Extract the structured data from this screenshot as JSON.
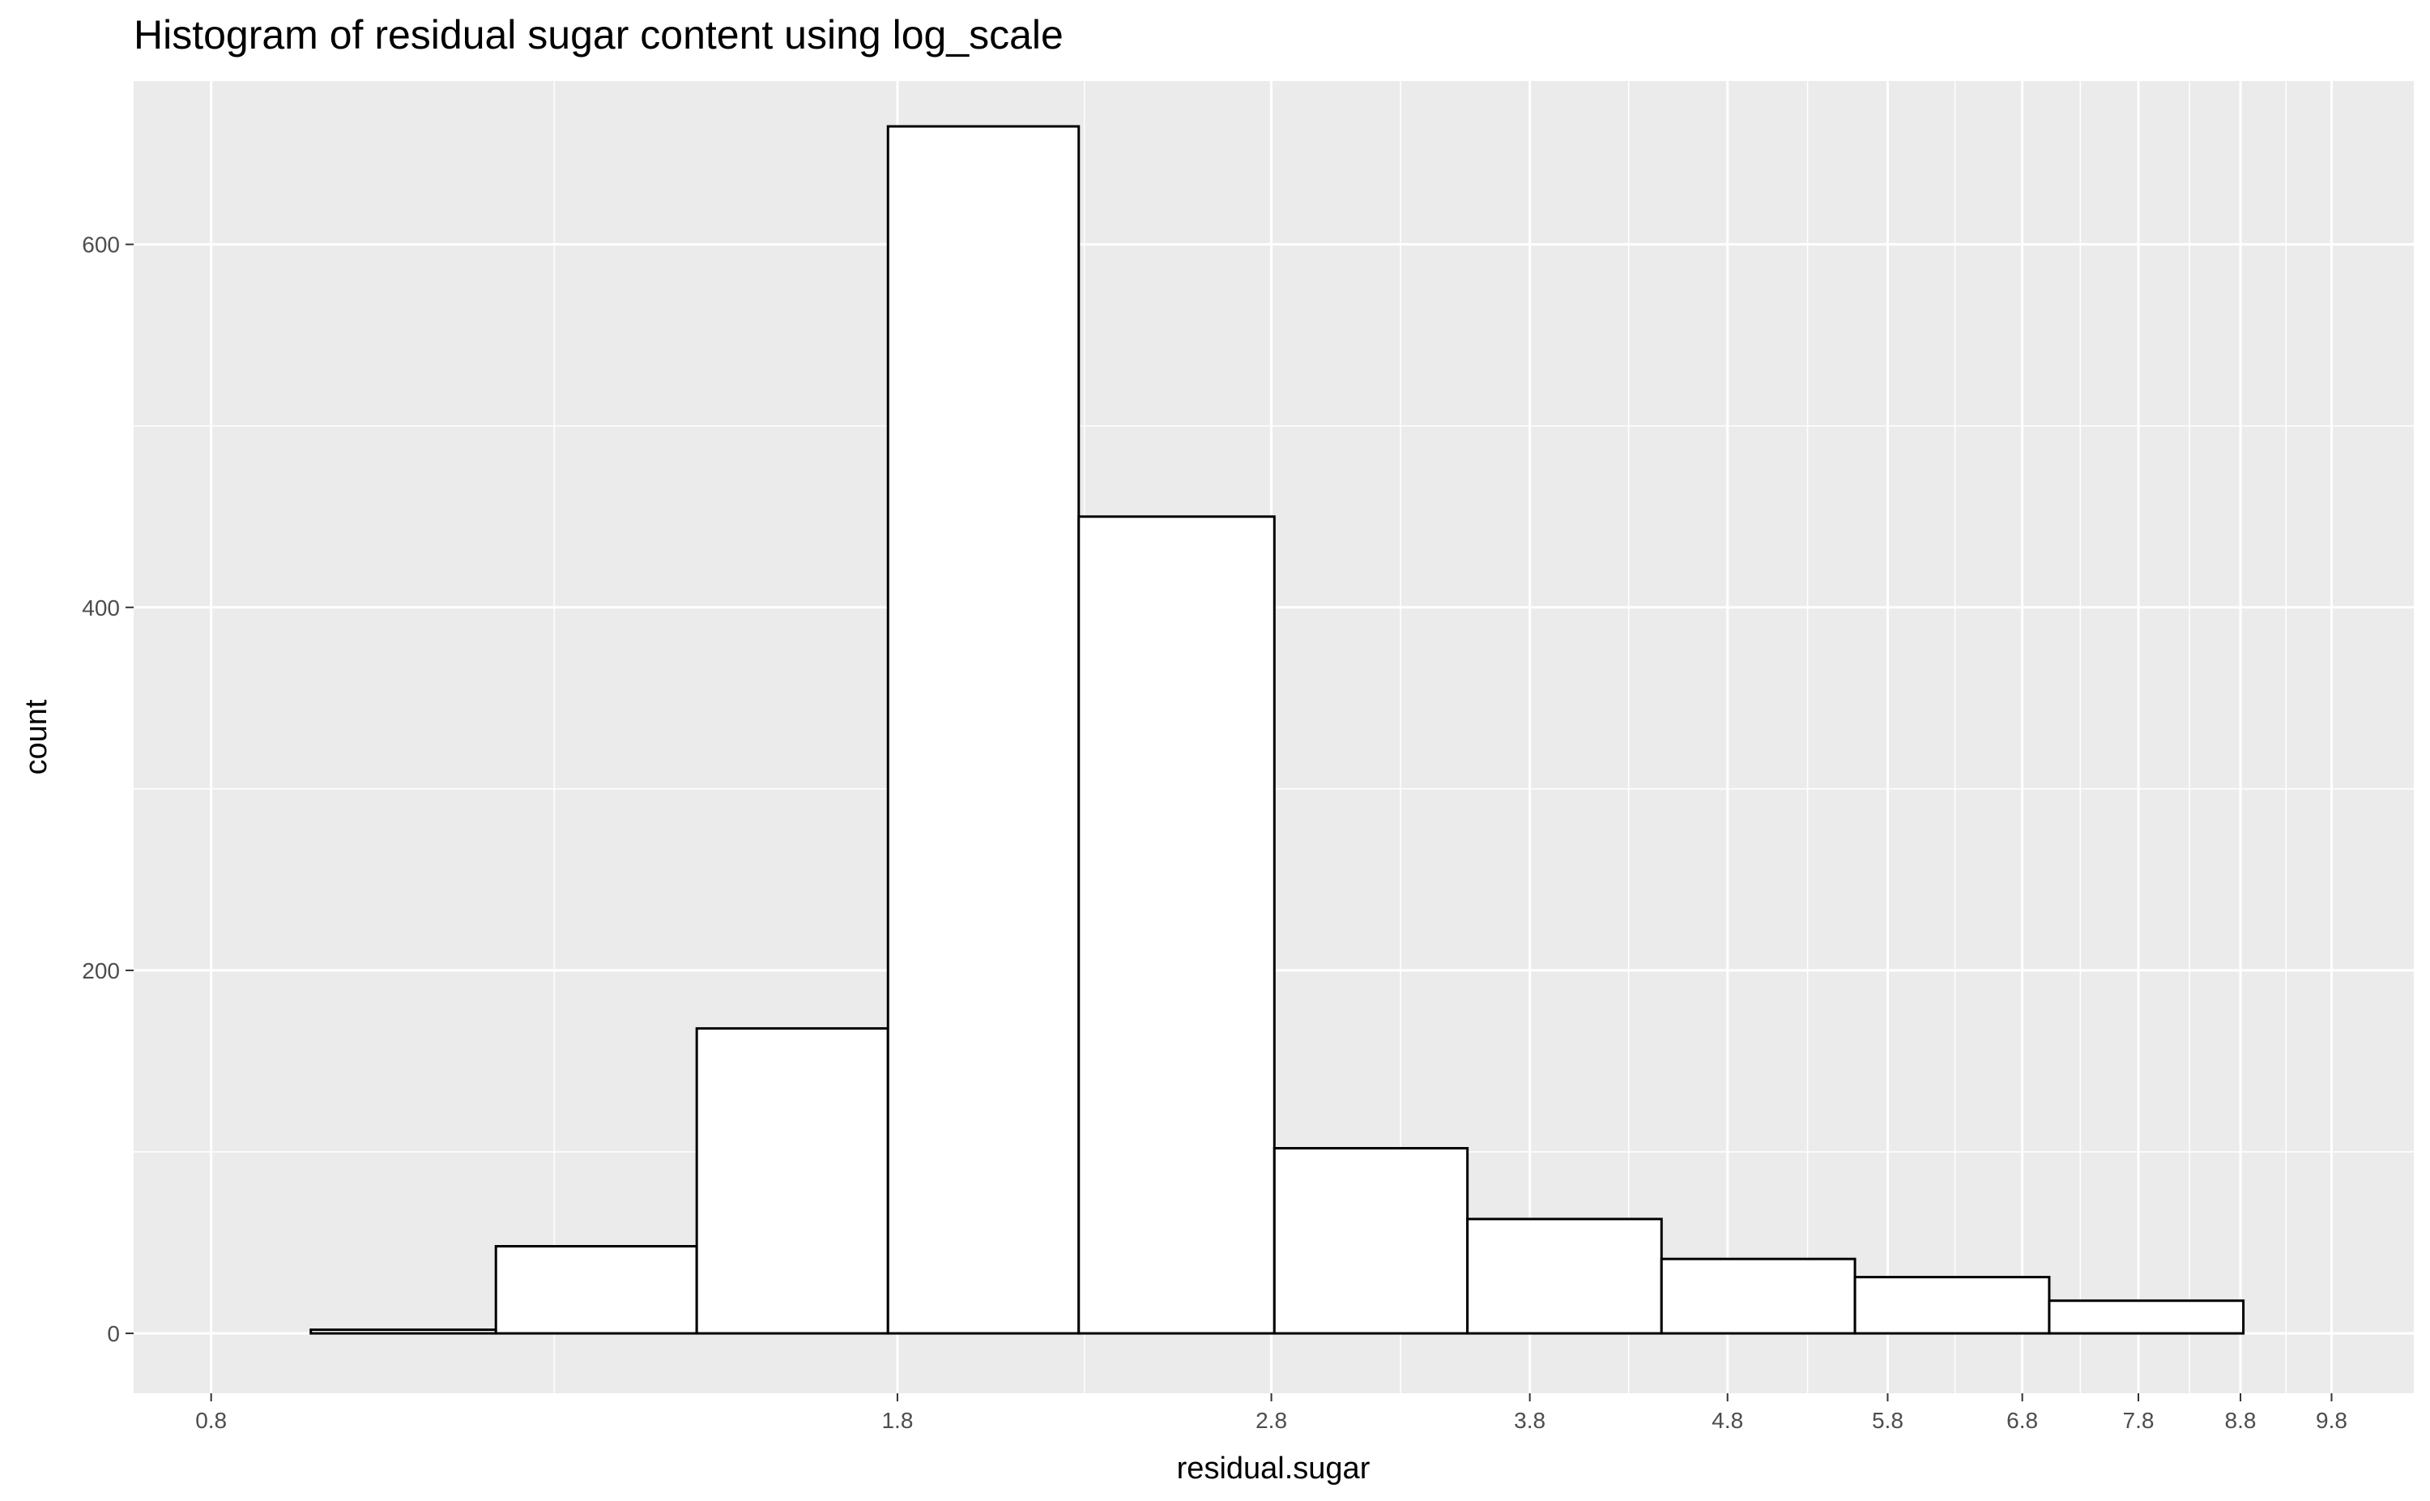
{
  "chart_data": {
    "type": "bar",
    "title": "Histogram of residual sugar content using log_scale",
    "xlabel": "residual.sugar",
    "ylabel": "count",
    "x_scale": "log10",
    "x_ticks": [
      "0.8",
      "1.8",
      "2.8",
      "3.8",
      "4.8",
      "5.8",
      "6.8",
      "7.8",
      "8.8",
      "9.8"
    ],
    "y_ticks": [
      "0",
      "200",
      "400",
      "600"
    ],
    "xlim": [
      0.73,
      10.8
    ],
    "ylim": [
      -33,
      690
    ],
    "grid": true,
    "bar_fill": "#ffffff",
    "bar_stroke": "#000000",
    "panel_background": "#ebebeb",
    "grid_color": "#ffffff",
    "bins": [
      {
        "x0": 0.9,
        "x1": 1.12,
        "count": 2
      },
      {
        "x0": 1.12,
        "x1": 1.42,
        "count": 48
      },
      {
        "x0": 1.42,
        "x1": 1.78,
        "count": 168
      },
      {
        "x0": 1.78,
        "x1": 2.23,
        "count": 665
      },
      {
        "x0": 2.23,
        "x1": 2.81,
        "count": 450
      },
      {
        "x0": 2.81,
        "x1": 3.53,
        "count": 102
      },
      {
        "x0": 3.53,
        "x1": 4.44,
        "count": 63
      },
      {
        "x0": 4.44,
        "x1": 5.58,
        "count": 41
      },
      {
        "x0": 5.58,
        "x1": 7.02,
        "count": 31
      },
      {
        "x0": 7.02,
        "x1": 8.83,
        "count": 18
      }
    ]
  }
}
